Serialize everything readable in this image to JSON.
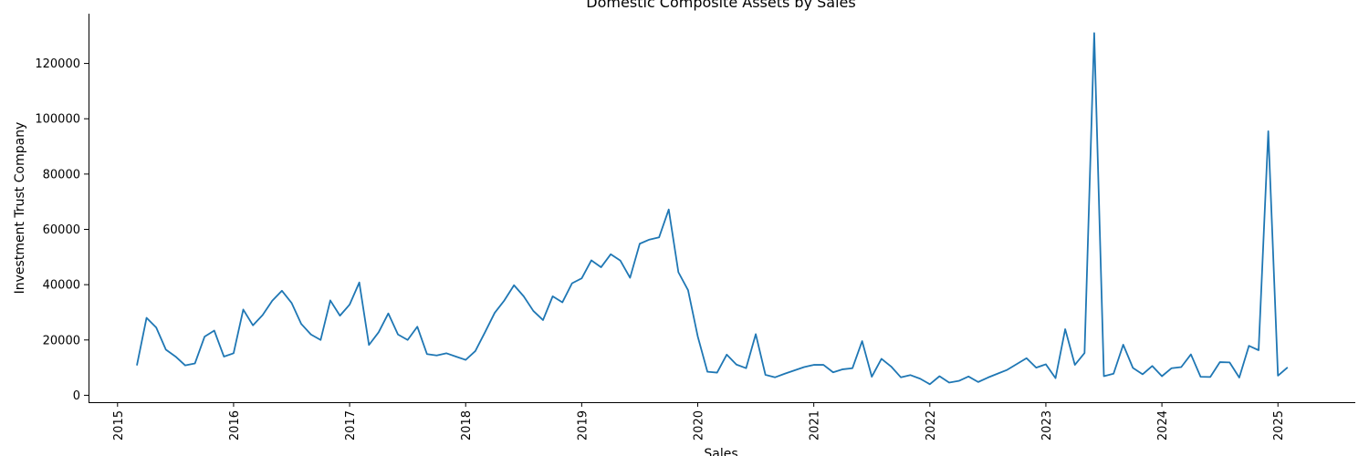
{
  "chart_data": {
    "type": "line",
    "title": "Domestic Composite Assets by Sales",
    "xlabel": "Sales",
    "ylabel": "Investment Trust Company",
    "xlim": [
      "2014-10-01",
      "2025-09-01"
    ],
    "ylim": [
      -2500,
      138000
    ],
    "x_ticks": [
      "2015",
      "2016",
      "2017",
      "2018",
      "2019",
      "2020",
      "2021",
      "2022",
      "2023",
      "2024",
      "2025"
    ],
    "y_ticks": [
      0,
      20000,
      40000,
      60000,
      80000,
      100000,
      120000
    ],
    "grid": false,
    "color": "#1f77b4",
    "series": [
      {
        "x": [
          "2015-03",
          "2015-04",
          "2015-05",
          "2015-06",
          "2015-07",
          "2015-08",
          "2015-09",
          "2015-10",
          "2015-11",
          "2015-12",
          "2016-01",
          "2016-02",
          "2016-03",
          "2016-04",
          "2016-05",
          "2016-06",
          "2016-07",
          "2016-08",
          "2016-09",
          "2016-10",
          "2016-11",
          "2016-12",
          "2017-01",
          "2017-02",
          "2017-03",
          "2017-04",
          "2017-05",
          "2017-06",
          "2017-07",
          "2017-08",
          "2017-09",
          "2017-10",
          "2017-11",
          "2017-12",
          "2018-01",
          "2018-02",
          "2018-03",
          "2018-04",
          "2018-05",
          "2018-06",
          "2018-07",
          "2018-08",
          "2018-09",
          "2018-10",
          "2018-11",
          "2018-12",
          "2019-01",
          "2019-02",
          "2019-03",
          "2019-04",
          "2019-05",
          "2019-06",
          "2019-07",
          "2019-08",
          "2019-09",
          "2019-10",
          "2019-11",
          "2019-12",
          "2020-01",
          "2020-02",
          "2020-03",
          "2020-04",
          "2020-05",
          "2020-06",
          "2020-07",
          "2020-08",
          "2020-09",
          "2020-10",
          "2020-11",
          "2020-12",
          "2021-01",
          "2021-02",
          "2021-03",
          "2021-04",
          "2021-05",
          "2021-06",
          "2021-07",
          "2021-08",
          "2021-09",
          "2021-10",
          "2021-11",
          "2021-12",
          "2022-01",
          "2022-02",
          "2022-03",
          "2022-04",
          "2022-05",
          "2022-06",
          "2022-07",
          "2022-08",
          "2022-09",
          "2022-10",
          "2022-11",
          "2022-12",
          "2023-01",
          "2023-02",
          "2023-03",
          "2023-04",
          "2023-05",
          "2023-06",
          "2023-07",
          "2023-08",
          "2023-09",
          "2023-10",
          "2023-11",
          "2023-12",
          "2024-01",
          "2024-02",
          "2024-03",
          "2024-04",
          "2024-05",
          "2024-06",
          "2024-07",
          "2024-08",
          "2024-09",
          "2024-10",
          "2024-11",
          "2024-12",
          "2025-01",
          "2025-02"
        ],
        "y": [
          10800,
          28000,
          24500,
          16500,
          14000,
          10800,
          11500,
          21200,
          23400,
          14000,
          15200,
          31000,
          25300,
          29000,
          34200,
          37800,
          33400,
          25800,
          22000,
          20000,
          34300,
          28800,
          32800,
          40800,
          18200,
          22800,
          29600,
          22000,
          20000,
          24800,
          14900,
          14400,
          15200,
          14000,
          12800,
          16000,
          22800,
          29800,
          34300,
          39800,
          35800,
          30500,
          27200,
          35800,
          33600,
          40500,
          42300,
          48800,
          46300,
          51000,
          48700,
          42500,
          54800,
          56300,
          57100,
          67200,
          44500,
          38000,
          21300,
          8500,
          8200,
          14700,
          11100,
          9800,
          22100,
          7400,
          6500,
          7800,
          9000,
          10200,
          11000,
          11000,
          8300,
          9400,
          9800,
          19600,
          6700,
          13200,
          10400,
          6500,
          7300,
          6000,
          4000,
          6900,
          4600,
          5200,
          6800,
          4800,
          6400,
          7800,
          9200,
          11300,
          13400,
          10000,
          11200,
          6200,
          23900,
          11000,
          15300,
          131000,
          6900,
          7800,
          18300,
          9900,
          7600,
          10600,
          6900,
          9800,
          10200,
          14800,
          6700,
          6600,
          12000,
          11900,
          6400,
          17900,
          16300,
          95500,
          7100,
          10100
        ]
      }
    ]
  }
}
